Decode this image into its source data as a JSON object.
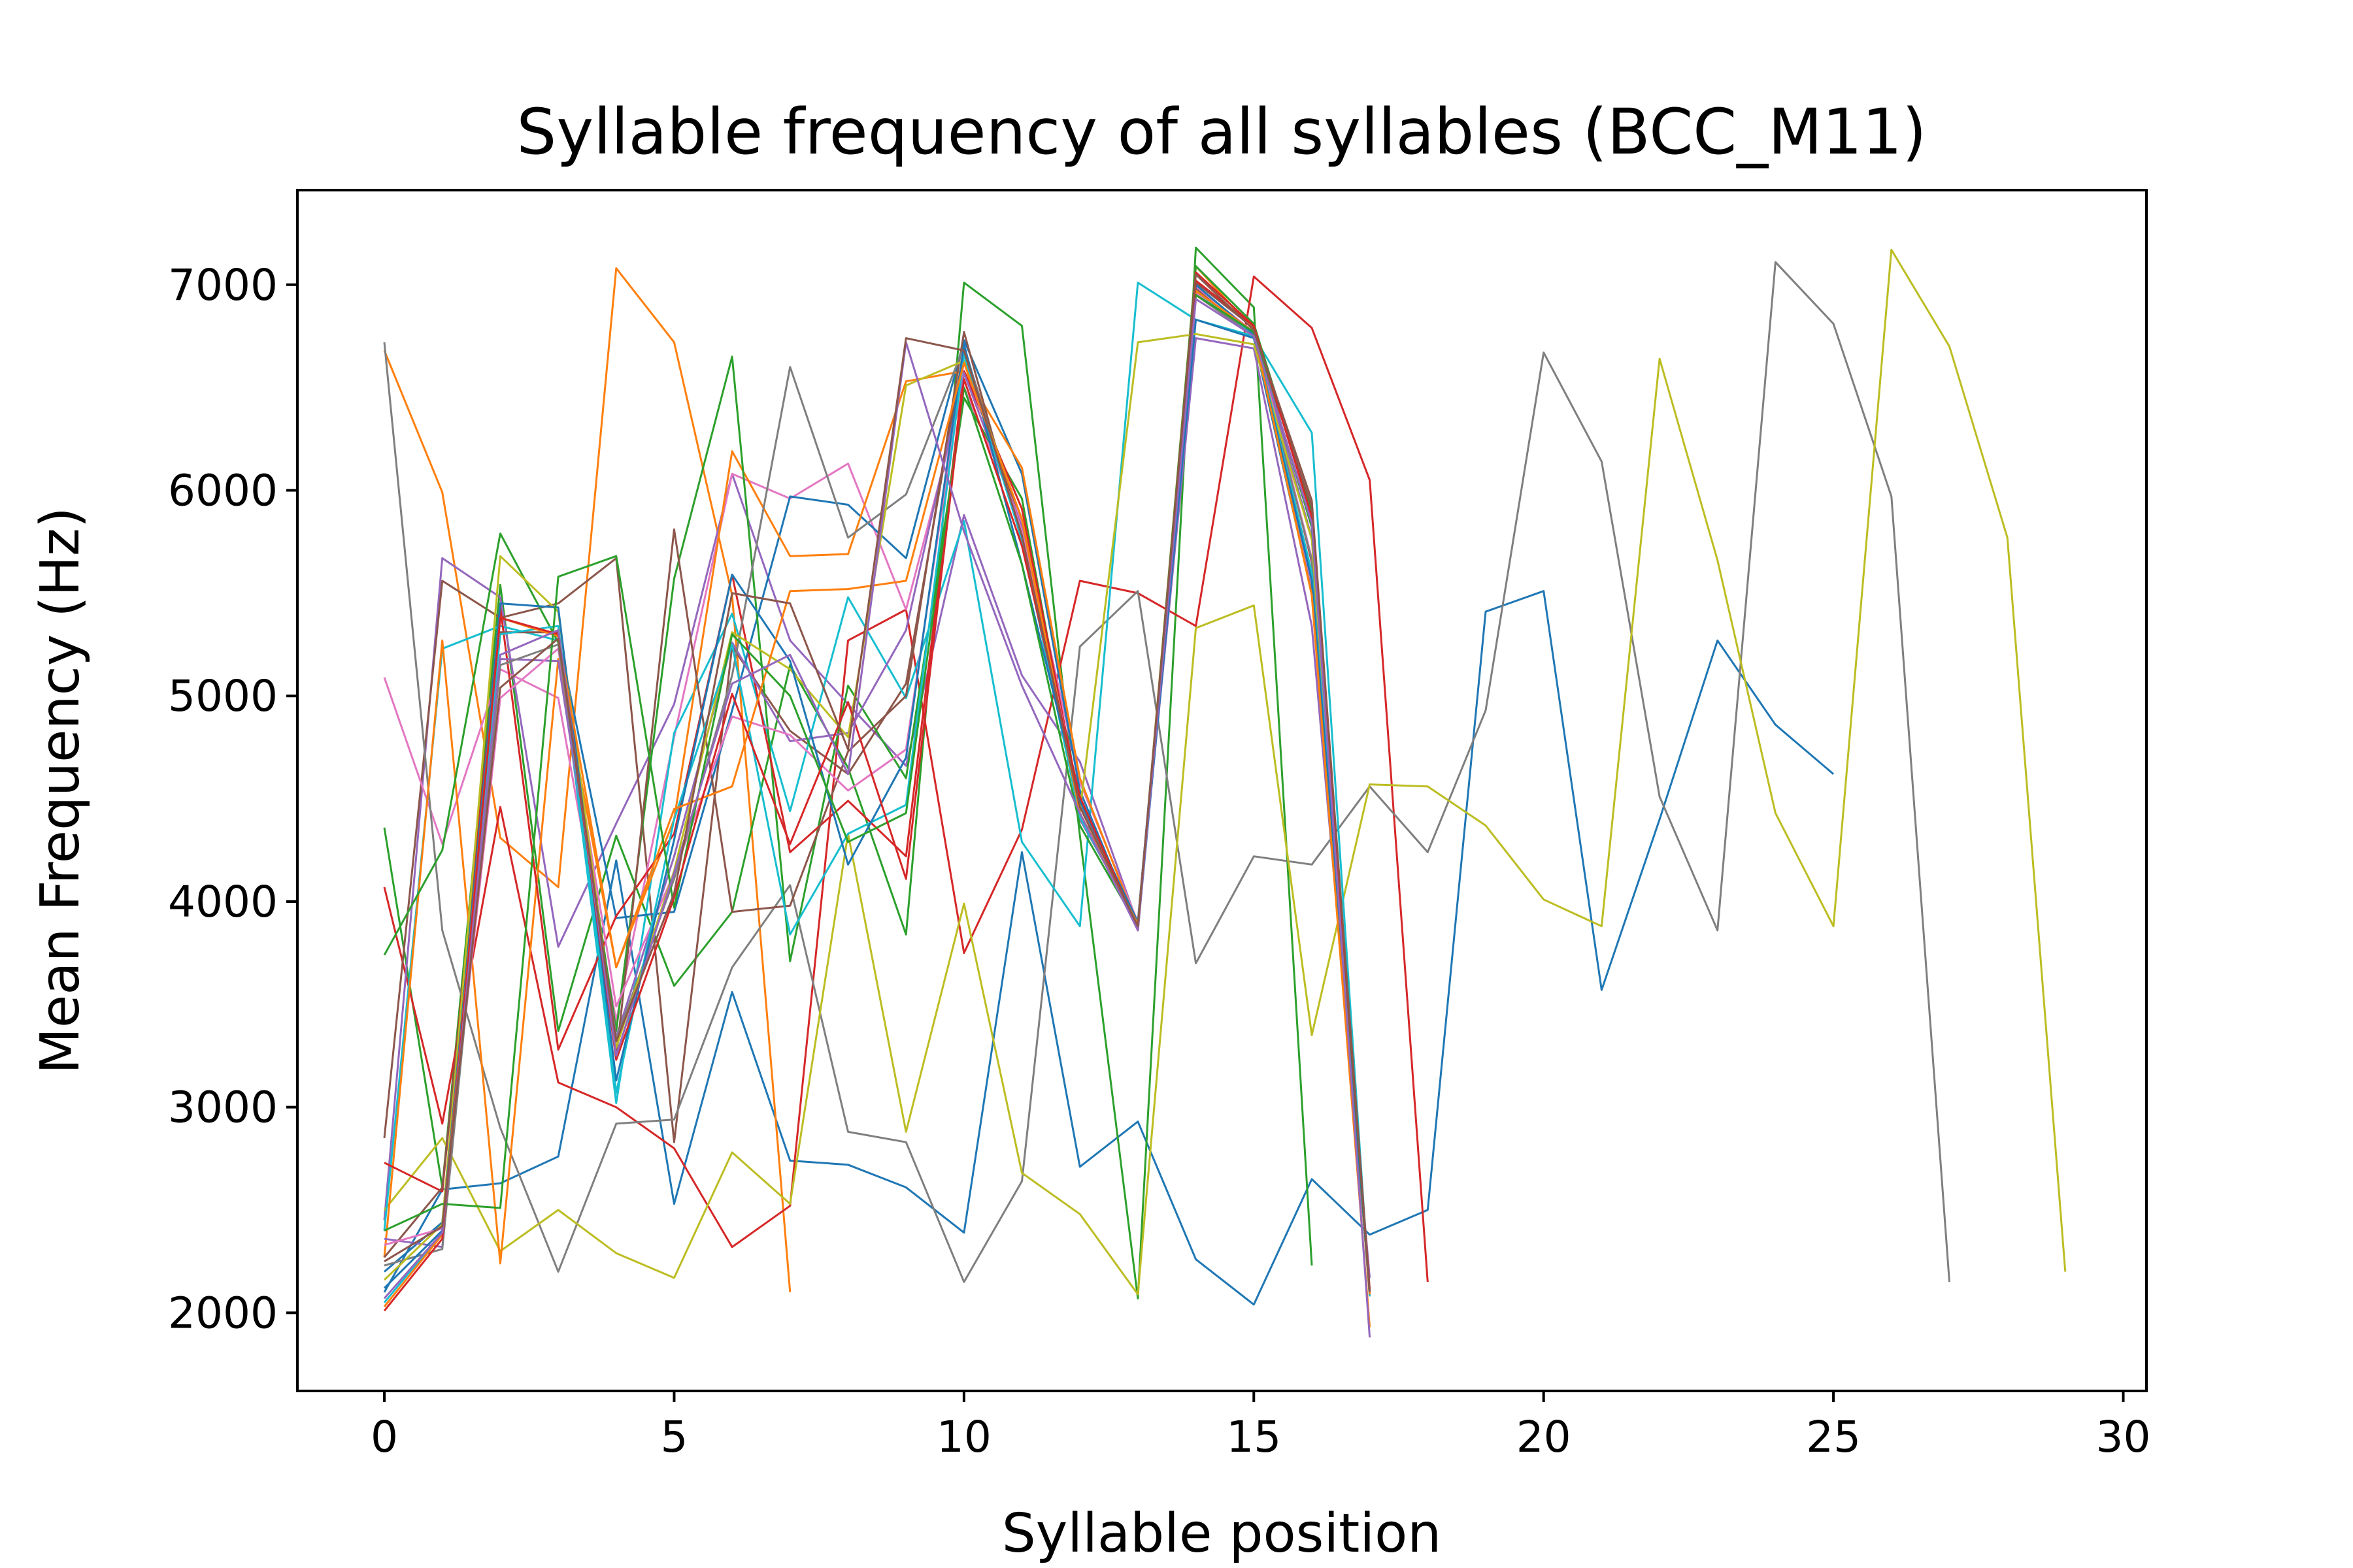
{
  "chart_data": {
    "type": "line",
    "title": "Syllable frequency of all syllables (BCC_M11)",
    "xlabel": "Syllable position",
    "ylabel": "Mean Frequency (Hz)",
    "xlim": [
      -1.5,
      30.4
    ],
    "ylim": [
      1620,
      7460
    ],
    "xticks": [
      0,
      5,
      10,
      15,
      20,
      25,
      30
    ],
    "yticks": [
      2000,
      3000,
      4000,
      5000,
      6000,
      7000
    ],
    "grid": false,
    "legend": "none",
    "series": [
      {
        "color": "#1f77b4",
        "values": [
          2100,
          2600,
          2630,
          2760,
          4200,
          2530,
          3560,
          2740,
          2720,
          2610,
          2390,
          4240,
          2710,
          2930,
          2260,
          2040,
          2650,
          2380,
          2500,
          5410,
          5510,
          3570,
          4400,
          5270,
          4860,
          4620
        ]
      },
      {
        "color": "#ff7f0e",
        "values": [
          6680,
          5990,
          4310,
          4070,
          7080,
          6720,
          5490,
          2100
        ]
      },
      {
        "color": "#2ca02c",
        "values": [
          4360,
          2610,
          5540,
          3370,
          4320,
          3590,
          3950,
          5150,
          4650,
          3840,
          7010,
          6800,
          4320,
          2070,
          7180,
          6890,
          2230
        ]
      },
      {
        "color": "#d62728",
        "values": [
          4070,
          2920,
          4460,
          3120,
          3000,
          2800,
          2320,
          2520,
          5270,
          5420,
          3750,
          4350,
          5560,
          5500,
          5340,
          7040,
          6790,
          6050,
          2150
        ]
      },
      {
        "color": "#9467bd",
        "values": [
          2450,
          5670,
          5480,
          3780,
          4380,
          4960,
          6080,
          5270,
          4960,
          4660,
          5880,
          5100,
          4680,
          3890,
          6740,
          6690,
          5340,
          2170
        ]
      },
      {
        "color": "#8c564b",
        "values": [
          2850,
          5560,
          5380,
          5450,
          5670,
          2830,
          5240,
          4830,
          4620,
          5060,
          6690,
          5820,
          4430,
          3880,
          7010,
          6790,
          5580,
          2080
        ]
      },
      {
        "color": "#e377c2",
        "values": [
          5090,
          4280,
          5130,
          4990,
          3420,
          4800,
          6080,
          5960,
          6130,
          5420,
          6500,
          5840,
          4580,
          3900,
          6990,
          6770,
          5520,
          2090
        ]
      },
      {
        "color": "#7f7f7f",
        "values": [
          6720,
          3860,
          2900,
          2200,
          2920,
          2940,
          3680,
          4080,
          2880,
          2830,
          2150,
          2640,
          5240,
          5510,
          3700,
          4220,
          4180,
          4560,
          4240,
          4930,
          6670,
          6140,
          4510,
          3860,
          7110,
          6810,
          5970,
          2150
        ]
      },
      {
        "color": "#bcbd22",
        "values": [
          2500,
          2850,
          2300,
          2500,
          2290,
          2170,
          2780,
          2530,
          4330,
          2880,
          3990,
          2680,
          2480,
          2090,
          5330,
          5440,
          3350,
          4570,
          4560,
          4370,
          4010,
          3880,
          6640,
          5660,
          4430,
          3880,
          7170,
          6700,
          5770,
          2200
        ]
      },
      {
        "color": "#17becf",
        "values": [
          2400,
          5230,
          5340,
          5270,
          3020,
          4820,
          5400,
          4440,
          5480,
          4990,
          5850,
          4290,
          3880,
          7010,
          6830,
          6750,
          6280,
          2080
        ]
      },
      {
        "color": "#1f77b4",
        "values": [
          2200,
          2440,
          5380,
          5290,
          3920,
          3950,
          4930,
          5970,
          5930,
          5670,
          6730,
          6080,
          4540,
          3860,
          6830,
          6740,
          5500,
          2100
        ]
      },
      {
        "color": "#ff7f0e",
        "values": [
          2270,
          5270,
          2240,
          5180,
          3680,
          4400,
          6190,
          5680,
          5690,
          6530,
          6580,
          6110,
          4600,
          3880,
          7090,
          6780,
          5490,
          2090
        ]
      },
      {
        "color": "#2ca02c",
        "values": [
          3740,
          4250,
          5790,
          5260,
          3370,
          5570,
          6650,
          3710,
          5050,
          4600,
          6450,
          5960,
          4430,
          3870,
          7090,
          6810,
          5900,
          2100
        ]
      },
      {
        "color": "#d62728",
        "values": [
          2730,
          2590,
          5430,
          3280,
          3930,
          4330,
          5590,
          4240,
          4490,
          4220,
          6580,
          5910,
          4480,
          3860,
          7060,
          6800,
          5650,
          2110
        ]
      },
      {
        "color": "#9467bd",
        "values": [
          2360,
          2320,
          5180,
          5170,
          3340,
          4220,
          5260,
          4780,
          4820,
          5320,
          6570,
          5820,
          4400,
          3900,
          6960,
          6760,
          5770,
          2110
        ]
      },
      {
        "color": "#8c564b",
        "values": [
          2270,
          2610,
          5310,
          5310,
          3240,
          5810,
          3950,
          3980,
          4730,
          5000,
          6770,
          5750,
          4490,
          3880,
          6980,
          6750,
          5920,
          2100
        ]
      },
      {
        "color": "#e377c2",
        "values": [
          2330,
          2410,
          4990,
          5230,
          3490,
          4140,
          4900,
          4810,
          4540,
          4740,
          6630,
          5800,
          4490,
          3880,
          6960,
          6770,
          5670,
          2100
        ]
      },
      {
        "color": "#7f7f7f",
        "values": [
          2230,
          2310,
          5150,
          5250,
          3330,
          4110,
          5100,
          6600,
          5770,
          5980,
          6700,
          5770,
          4470,
          3890,
          6950,
          6750,
          5660,
          2100
        ]
      },
      {
        "color": "#bcbd22",
        "values": [
          2160,
          2430,
          5680,
          5410,
          3290,
          4150,
          5310,
          5130,
          4800,
          6510,
          6630,
          5860,
          4440,
          6720,
          6760,
          6710,
          5760,
          2100
        ]
      },
      {
        "color": "#17becf",
        "values": [
          2050,
          2390,
          5300,
          5340,
          3070,
          4400,
          5250,
          3840,
          4330,
          4470,
          6660,
          5760,
          4410,
          3890,
          6970,
          6760,
          5600,
          2100
        ]
      },
      {
        "color": "#1f77b4",
        "values": [
          2120,
          2400,
          5450,
          5430,
          3130,
          4300,
          5590,
          5170,
          4180,
          4700,
          6710,
          5640,
          4490,
          3900,
          7000,
          6760,
          5560,
          2100
        ]
      },
      {
        "color": "#ff7f0e",
        "values": [
          2030,
          2380,
          5380,
          5290,
          3680,
          4450,
          4560,
          5510,
          5520,
          5560,
          6620,
          5860,
          4430,
          3890,
          6970,
          6770,
          5490,
          1930
        ]
      },
      {
        "color": "#2ca02c",
        "values": [
          2400,
          2530,
          2510,
          5580,
          5680,
          3970,
          5300,
          5000,
          4290,
          4430,
          6500,
          5640,
          4370,
          3880,
          6950,
          6770,
          5820,
          2100
        ]
      },
      {
        "color": "#d62728",
        "values": [
          2010,
          2360,
          5380,
          5300,
          3230,
          4020,
          5010,
          4280,
          4970,
          4110,
          6540,
          5730,
          4510,
          3870,
          7020,
          6800,
          5870,
          2110
        ]
      },
      {
        "color": "#9467bd",
        "values": [
          2070,
          2390,
          5200,
          5320,
          3250,
          4140,
          5060,
          5200,
          4620,
          6720,
          5800,
          5050,
          4430,
          3860,
          6930,
          6750,
          5840,
          1880
        ]
      },
      {
        "color": "#8c564b",
        "values": [
          2250,
          2420,
          5040,
          5280,
          3320,
          4040,
          5500,
          5450,
          4740,
          6740,
          6680,
          5780,
          4460,
          3880,
          7050,
          6780,
          5950,
          2100
        ]
      }
    ]
  }
}
